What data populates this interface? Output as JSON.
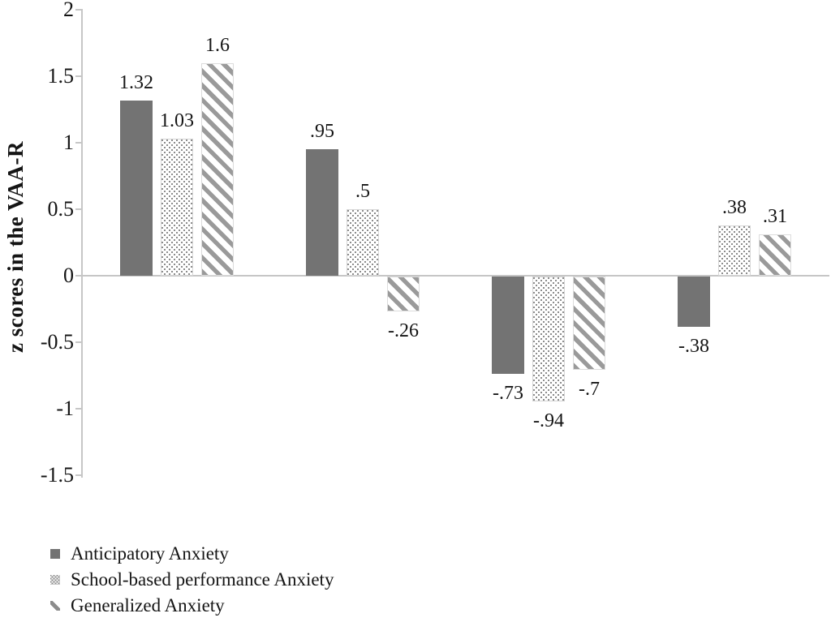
{
  "chart_data": {
    "type": "bar",
    "title": "",
    "xlabel": "",
    "ylabel": "z scores in the VAA-R",
    "ylim": [
      -1.5,
      2
    ],
    "ytick_labels": [
      "2",
      "1.5",
      "1",
      "0.5",
      "0",
      "-0.5",
      "-1",
      "-1.5"
    ],
    "ytick_values": [
      2,
      1.5,
      1,
      0.5,
      0,
      -0.5,
      -1,
      -1.5
    ],
    "x_category_labels_visible": false,
    "n_groups": 4,
    "grid": false,
    "legend_position": "bottom-left",
    "series": [
      {
        "name": "Anticipatory Anxiety",
        "pattern": "solid",
        "values": [
          1.32,
          0.95,
          -0.73,
          -0.38
        ],
        "labels": [
          "1.32",
          ".95",
          "-.73",
          "-.38"
        ]
      },
      {
        "name": "School-based performance Anxiety",
        "pattern": "dotted",
        "values": [
          1.03,
          0.5,
          -0.94,
          0.38
        ],
        "labels": [
          "1.03",
          ".5",
          "-.94",
          ".38"
        ]
      },
      {
        "name": "Generalized Anxiety",
        "pattern": "diagonal",
        "values": [
          1.6,
          -0.26,
          -0.7,
          0.31
        ],
        "labels": [
          "1.6",
          "-.26",
          "-.7",
          ".31"
        ]
      }
    ],
    "colors": {
      "solid_bar": "#737373",
      "stripe_gray": "#9a9a9a",
      "dot_gray": "#8a8a8a",
      "axis_gray": "#c6c6c6",
      "text": "#141414"
    }
  }
}
